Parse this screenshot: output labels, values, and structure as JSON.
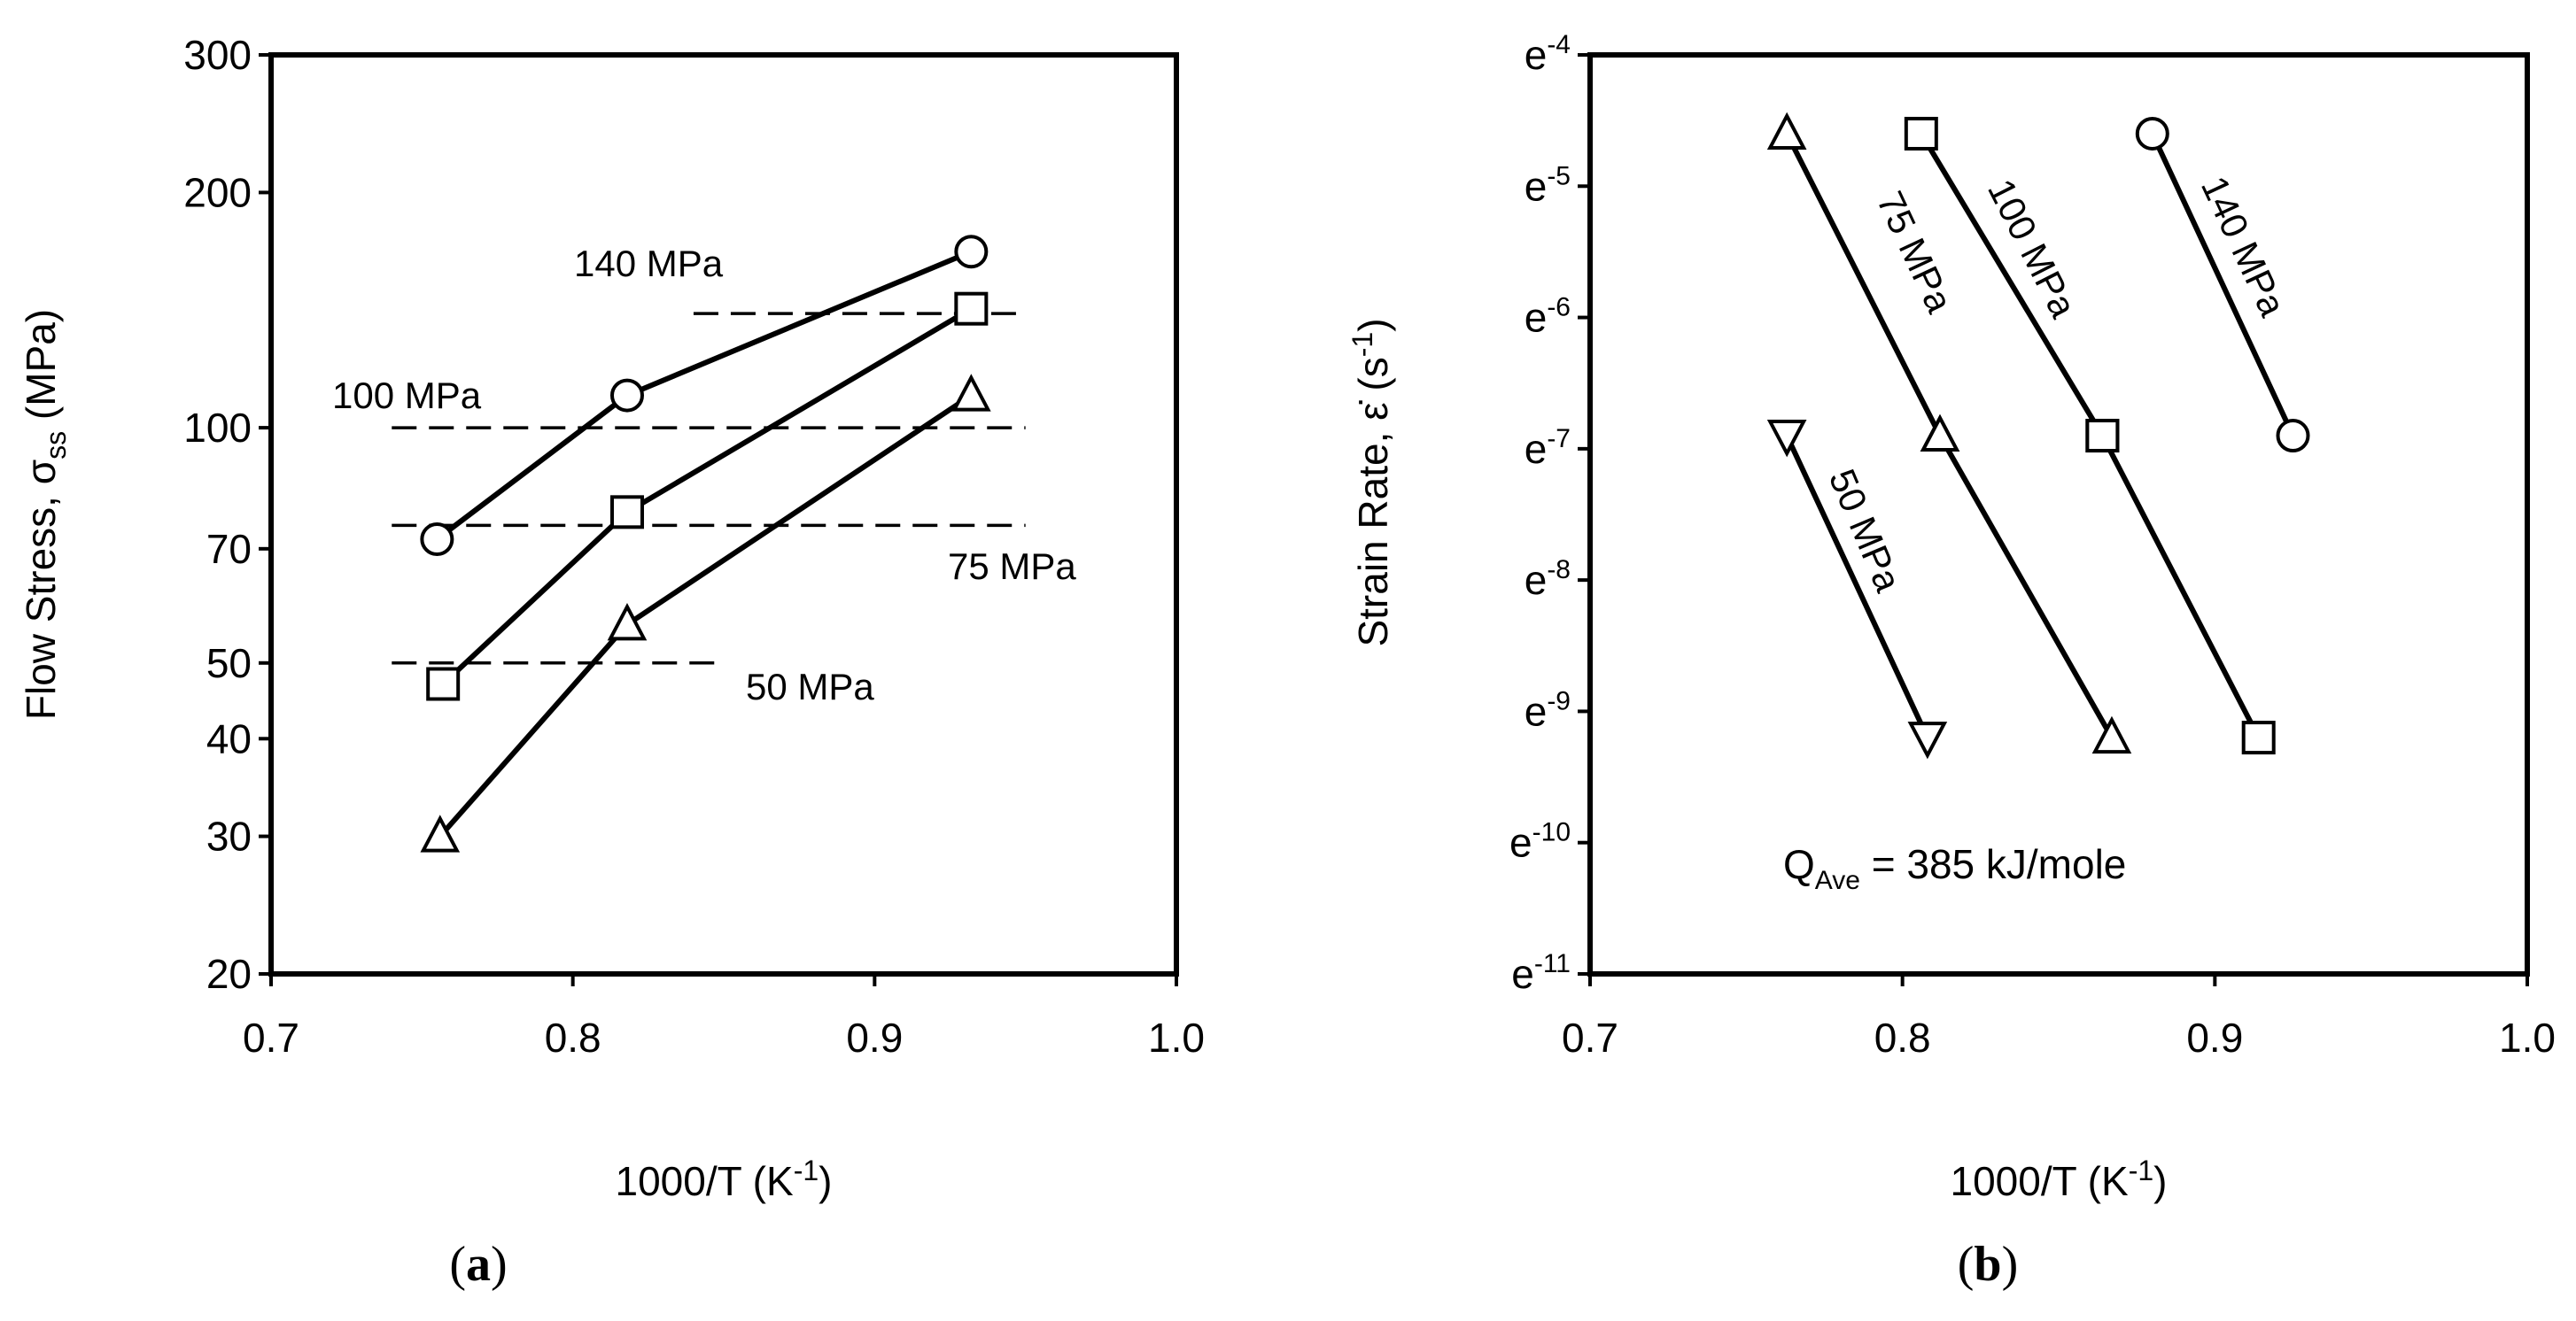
{
  "chart_data": [
    {
      "panel_label_open": "(",
      "panel_label": "a",
      "panel_label_close": ")",
      "type": "line",
      "title": "",
      "ylabel_main": "Flow Stress, σ",
      "ylabel_sub": "ss",
      "ylabel_unit": " (MPa)",
      "xlabel_main": "1000/T (K",
      "xlabel_sup": "-1",
      "xlabel_end": ")",
      "yscale": "log",
      "xlim": [
        0.7,
        1.0
      ],
      "ylim": [
        20,
        300
      ],
      "xticks": [
        0.7,
        0.8,
        0.9,
        1.0
      ],
      "xticklabels": [
        "0.7",
        "0.8",
        "0.9",
        "1.0"
      ],
      "yticks": [
        20,
        30,
        40,
        50,
        70,
        100,
        200,
        300
      ],
      "yticklabels": [
        "20",
        "30",
        "40",
        "50",
        "70",
        "100",
        "200",
        "300"
      ],
      "grid": false,
      "series": [
        {
          "name": "circle",
          "marker": "circle",
          "x": [
            0.755,
            0.818,
            0.932
          ],
          "y": [
            72,
            110,
            168
          ]
        },
        {
          "name": "square",
          "marker": "square",
          "x": [
            0.757,
            0.818,
            0.932
          ],
          "y": [
            47,
            78,
            142
          ]
        },
        {
          "name": "triangle",
          "marker": "triangle-up",
          "x": [
            0.756,
            0.818,
            0.932
          ],
          "y": [
            30,
            56,
            110
          ]
        }
      ],
      "reference_lines": [
        {
          "label": "140 MPa",
          "y": 140,
          "x_range": [
            0.84,
            0.95
          ]
        },
        {
          "label": "100 MPa",
          "y": 100,
          "x_range": [
            0.74,
            0.95
          ]
        },
        {
          "label": "75 MPa",
          "y": 75,
          "x_range": [
            0.74,
            0.95
          ]
        },
        {
          "label": "50 MPa",
          "y": 50,
          "x_range": [
            0.74,
            0.85
          ]
        }
      ]
    },
    {
      "panel_label_open": "(",
      "panel_label": "b",
      "panel_label_close": ")",
      "type": "line",
      "title": "",
      "ylabel_main": "Strain Rate, ε̇ (s",
      "ylabel_sup": "-1",
      "ylabel_end": ")",
      "xlabel_main": "1000/T (K",
      "xlabel_sup": "-1",
      "xlabel_end": ")",
      "yscale": "ln",
      "xlim": [
        0.7,
        1.0
      ],
      "ylim_exponent": [
        -11,
        -4
      ],
      "xticks": [
        0.7,
        0.8,
        0.9,
        1.0
      ],
      "xticklabels": [
        "0.7",
        "0.8",
        "0.9",
        "1.0"
      ],
      "yticks_exponent": [
        -4,
        -5,
        -6,
        -7,
        -8,
        -9,
        -10,
        -11
      ],
      "ytick_base": "e",
      "yticklabels_exp": [
        "-4",
        "-5",
        "-6",
        "-7",
        "-8",
        "-9",
        "-10",
        "-11"
      ],
      "grid": false,
      "series": [
        {
          "name": "140 MPa",
          "marker": "circle",
          "x": [
            0.88,
            0.925
          ],
          "y_exponent": [
            -4.6,
            -6.9
          ]
        },
        {
          "name": "100 MPa",
          "marker": "square",
          "x": [
            0.806,
            0.864
          ],
          "y_exponent": [
            -4.6,
            -6.9
          ]
        },
        {
          "name": "75 MPa",
          "marker": "triangle-up",
          "x": [
            0.763,
            0.812
          ],
          "y_exponent": [
            -4.6,
            -6.9
          ]
        },
        {
          "name": "50 MPa",
          "marker": "triangle-down",
          "x": [
            0.763,
            0.808
          ],
          "y_exponent": [
            -6.9,
            -9.2
          ]
        },
        {
          "name": "75 MPa",
          "marker": "triangle-up",
          "x": [
            0.812,
            0.867
          ],
          "y_exponent": [
            -6.9,
            -9.2
          ]
        },
        {
          "name": "100 MPa",
          "marker": "square",
          "x": [
            0.864,
            0.914
          ],
          "y_exponent": [
            -6.9,
            -9.2
          ]
        }
      ],
      "line_labels": [
        "140 MPa",
        "100 MPa",
        "75 MPa",
        "50 MPa"
      ],
      "annotation_main": "Q",
      "annotation_sub": "Ave",
      "annotation_rest": " = 385 kJ/mole"
    }
  ]
}
